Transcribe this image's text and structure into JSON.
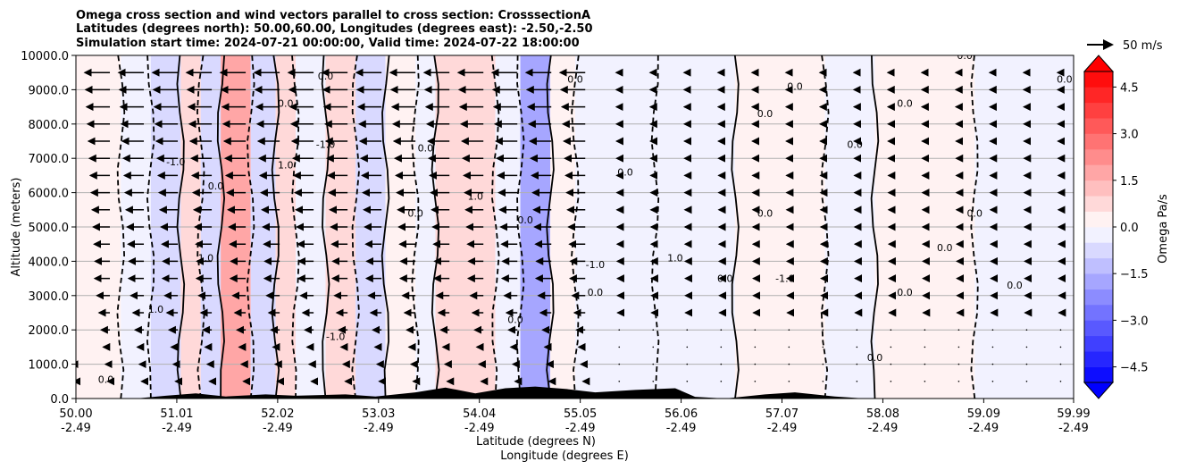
{
  "chart_data": {
    "type": "heatmap",
    "title_lines": [
      "Omega cross section and wind vectors parallel to cross section: CrosssectionA",
      "Latitudes (degrees north): 50.00,60.00, Longitudes (degrees east): -2.50,-2.50",
      "Simulation start time: 2024-07-21 00:00:00, Valid time: 2024-07-22 18:00:00"
    ],
    "ylabel": "Altitude (meters)",
    "xlabel_line1": "Latitude (degrees N)",
    "xlabel_line2": "Longitude (degrees E)",
    "ylim": [
      0,
      10000
    ],
    "xlim": [
      50.0,
      59.99
    ],
    "y_ticks": [
      {
        "value": 0,
        "label": "0.0"
      },
      {
        "value": 1000,
        "label": "1000.0"
      },
      {
        "value": 2000,
        "label": "2000.0"
      },
      {
        "value": 3000,
        "label": "3000.0"
      },
      {
        "value": 4000,
        "label": "4000.0"
      },
      {
        "value": 5000,
        "label": "5000.0"
      },
      {
        "value": 6000,
        "label": "6000.0"
      },
      {
        "value": 7000,
        "label": "7000.0"
      },
      {
        "value": 8000,
        "label": "8000.0"
      },
      {
        "value": 9000,
        "label": "9000.0"
      },
      {
        "value": 10000,
        "label": "10000.0"
      }
    ],
    "x_ticks": [
      {
        "lat": 50.0,
        "label_lat": "50.00",
        "label_lon": "-2.49"
      },
      {
        "lat": 51.01,
        "label_lat": "51.01",
        "label_lon": "-2.49"
      },
      {
        "lat": 52.02,
        "label_lat": "52.02",
        "label_lon": "-2.49"
      },
      {
        "lat": 53.03,
        "label_lat": "53.03",
        "label_lon": "-2.49"
      },
      {
        "lat": 54.04,
        "label_lat": "54.04",
        "label_lon": "-2.49"
      },
      {
        "lat": 55.05,
        "label_lat": "55.05",
        "label_lon": "-2.49"
      },
      {
        "lat": 56.06,
        "label_lat": "56.06",
        "label_lon": "-2.49"
      },
      {
        "lat": 57.07,
        "label_lat": "57.07",
        "label_lon": "-2.49"
      },
      {
        "lat": 58.08,
        "label_lat": "58.08",
        "label_lon": "-2.49"
      },
      {
        "lat": 59.09,
        "label_lat": "59.09",
        "label_lon": "-2.49"
      },
      {
        "lat": 59.99,
        "label_lat": "59.99",
        "label_lon": "-2.49"
      }
    ],
    "colorbar": {
      "label": "Omega Pa/s",
      "min": -5.0,
      "max": 5.0,
      "step": 0.5,
      "extend": "both",
      "cmap": "bwr",
      "ticks": [
        {
          "value": 4.5,
          "label": "4.5"
        },
        {
          "value": 3.0,
          "label": "3.0"
        },
        {
          "value": 1.5,
          "label": "1.5"
        },
        {
          "value": 0.0,
          "label": "0.0"
        },
        {
          "value": -1.5,
          "label": "−1.5"
        },
        {
          "value": -3.0,
          "label": "−3.0"
        },
        {
          "value": -4.5,
          "label": "−4.5"
        }
      ]
    },
    "quiver_key": {
      "label": "50 m/s",
      "speed": 50
    },
    "grid": "horizontal",
    "contour_levels": [
      -1.0,
      0.0,
      1.0
    ],
    "omega_bands": [
      {
        "lat_start": 50.0,
        "lat_end": 50.45,
        "omega": 0.2
      },
      {
        "lat_start": 50.45,
        "lat_end": 50.75,
        "omega": -0.3
      },
      {
        "lat_start": 50.75,
        "lat_end": 51.05,
        "omega": -0.8
      },
      {
        "lat_start": 51.05,
        "lat_end": 51.25,
        "omega": 0.6
      },
      {
        "lat_start": 51.25,
        "lat_end": 51.45,
        "omega": -0.6
      },
      {
        "lat_start": 51.45,
        "lat_end": 51.75,
        "omega": 1.5
      },
      {
        "lat_start": 51.75,
        "lat_end": 52.0,
        "omega": -0.6
      },
      {
        "lat_start": 52.0,
        "lat_end": 52.2,
        "omega": 0.8
      },
      {
        "lat_start": 52.2,
        "lat_end": 52.5,
        "omega": -0.5
      },
      {
        "lat_start": 52.5,
        "lat_end": 52.8,
        "omega": 0.5
      },
      {
        "lat_start": 52.8,
        "lat_end": 53.1,
        "omega": -0.6
      },
      {
        "lat_start": 53.1,
        "lat_end": 53.4,
        "omega": 0.4
      },
      {
        "lat_start": 53.4,
        "lat_end": 53.6,
        "omega": -0.3
      },
      {
        "lat_start": 53.6,
        "lat_end": 54.2,
        "omega": 0.8
      },
      {
        "lat_start": 54.2,
        "lat_end": 54.45,
        "omega": -0.5
      },
      {
        "lat_start": 54.45,
        "lat_end": 54.75,
        "omega": -1.8
      },
      {
        "lat_start": 54.75,
        "lat_end": 55.0,
        "omega": 0.3
      },
      {
        "lat_start": 55.0,
        "lat_end": 55.8,
        "omega": -0.2
      },
      {
        "lat_start": 55.8,
        "lat_end": 56.6,
        "omega": -0.2
      },
      {
        "lat_start": 56.6,
        "lat_end": 57.5,
        "omega": 0.2
      },
      {
        "lat_start": 57.5,
        "lat_end": 58.0,
        "omega": -0.1
      },
      {
        "lat_start": 58.0,
        "lat_end": 59.0,
        "omega": 0.2
      },
      {
        "lat_start": 59.0,
        "lat_end": 59.99,
        "omega": -0.1
      }
    ],
    "terrain": [
      {
        "lat": 50.0,
        "alt": 0
      },
      {
        "lat": 50.6,
        "alt": 0
      },
      {
        "lat": 50.9,
        "alt": 80
      },
      {
        "lat": 51.2,
        "alt": 150
      },
      {
        "lat": 51.5,
        "alt": 60
      },
      {
        "lat": 51.9,
        "alt": 120
      },
      {
        "lat": 52.2,
        "alt": 80
      },
      {
        "lat": 52.7,
        "alt": 120
      },
      {
        "lat": 53.0,
        "alt": 60
      },
      {
        "lat": 53.4,
        "alt": 180
      },
      {
        "lat": 53.7,
        "alt": 320
      },
      {
        "lat": 54.0,
        "alt": 150
      },
      {
        "lat": 54.3,
        "alt": 300
      },
      {
        "lat": 54.6,
        "alt": 350
      },
      {
        "lat": 54.9,
        "alt": 280
      },
      {
        "lat": 55.2,
        "alt": 180
      },
      {
        "lat": 55.6,
        "alt": 250
      },
      {
        "lat": 56.0,
        "alt": 300
      },
      {
        "lat": 56.2,
        "alt": 50
      },
      {
        "lat": 56.5,
        "alt": 0
      },
      {
        "lat": 56.9,
        "alt": 120
      },
      {
        "lat": 57.2,
        "alt": 180
      },
      {
        "lat": 57.6,
        "alt": 60
      },
      {
        "lat": 57.9,
        "alt": 0
      },
      {
        "lat": 59.99,
        "alt": 0
      }
    ],
    "contour_labels": [
      {
        "lat": 50.3,
        "alt": 450,
        "text": "0.0"
      },
      {
        "lat": 50.8,
        "alt": 2500,
        "text": "1.0"
      },
      {
        "lat": 51.0,
        "alt": 6800,
        "text": "-1.0"
      },
      {
        "lat": 51.3,
        "alt": 4000,
        "text": "1.0"
      },
      {
        "lat": 51.4,
        "alt": 6100,
        "text": "0.0"
      },
      {
        "lat": 52.1,
        "alt": 6700,
        "text": "1.0"
      },
      {
        "lat": 52.1,
        "alt": 8500,
        "text": "0.0"
      },
      {
        "lat": 52.5,
        "alt": 9300,
        "text": "0.0"
      },
      {
        "lat": 52.5,
        "alt": 7300,
        "text": "-1.0"
      },
      {
        "lat": 52.6,
        "alt": 1700,
        "text": "-1.0"
      },
      {
        "lat": 53.4,
        "alt": 5300,
        "text": "0.0"
      },
      {
        "lat": 53.5,
        "alt": 7200,
        "text": "0.0"
      },
      {
        "lat": 54.0,
        "alt": 5800,
        "text": "1.0"
      },
      {
        "lat": 54.4,
        "alt": 2200,
        "text": "0.0"
      },
      {
        "lat": 54.5,
        "alt": 5100,
        "text": "0.0"
      },
      {
        "lat": 55.0,
        "alt": 9200,
        "text": "0.0"
      },
      {
        "lat": 55.2,
        "alt": 3000,
        "text": "0.0"
      },
      {
        "lat": 55.2,
        "alt": 3800,
        "text": "-1.0"
      },
      {
        "lat": 55.5,
        "alt": 6500,
        "text": "0.0"
      },
      {
        "lat": 56.0,
        "alt": 4000,
        "text": "1.0"
      },
      {
        "lat": 56.5,
        "alt": 3400,
        "text": "0.0"
      },
      {
        "lat": 56.9,
        "alt": 8200,
        "text": "0.0"
      },
      {
        "lat": 56.9,
        "alt": 5300,
        "text": "0.0"
      },
      {
        "lat": 57.1,
        "alt": 3400,
        "text": "-1.0"
      },
      {
        "lat": 57.2,
        "alt": 9000,
        "text": "0.0"
      },
      {
        "lat": 57.8,
        "alt": 7300,
        "text": "0.0"
      },
      {
        "lat": 58.0,
        "alt": 1100,
        "text": "0.0"
      },
      {
        "lat": 58.3,
        "alt": 3000,
        "text": "0.0"
      },
      {
        "lat": 58.3,
        "alt": 8500,
        "text": "0.0"
      },
      {
        "lat": 58.7,
        "alt": 4300,
        "text": "0.0"
      },
      {
        "lat": 58.9,
        "alt": 9900,
        "text": "0.0"
      },
      {
        "lat": 59.0,
        "alt": 5300,
        "text": "0.0"
      },
      {
        "lat": 59.4,
        "alt": 3200,
        "text": "0.0"
      },
      {
        "lat": 59.9,
        "alt": 9200,
        "text": "0.0"
      }
    ],
    "vectors": {
      "u_westward_upper": -50,
      "u_westward_mid": -30,
      "u_weak_east": -6
    }
  }
}
